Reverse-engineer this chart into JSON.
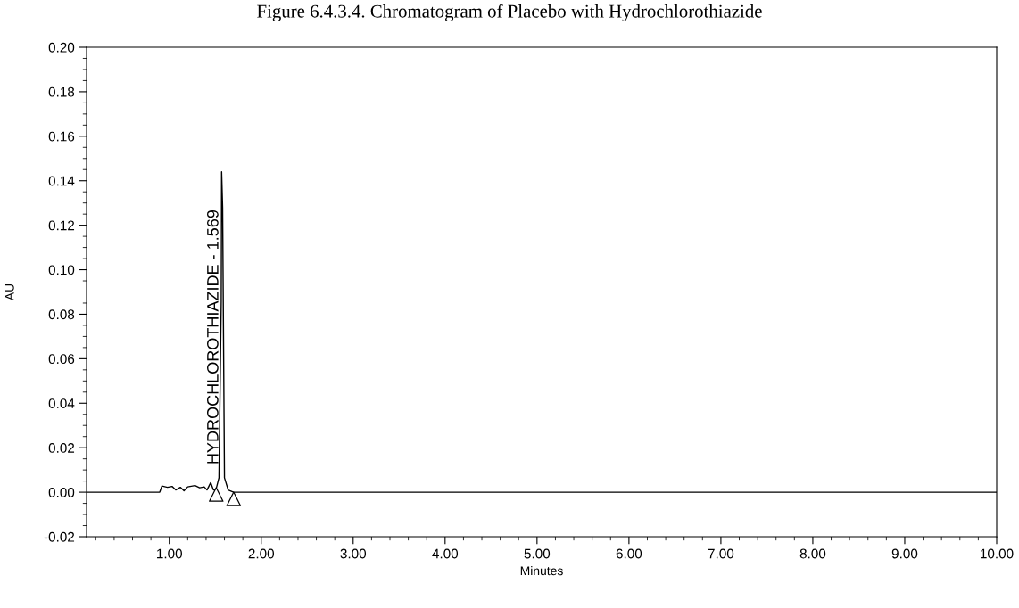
{
  "chart_data": {
    "type": "line",
    "title": "Figure 6.4.3.4. Chromatogram of Placebo with Hydrochlorothiazide",
    "xlabel": "Minutes",
    "ylabel": "AU",
    "annotations": [
      {
        "text": "HYDROCHLOROTHIAZIDE - 1.569",
        "x": 1.569,
        "y": 0.127
      }
    ],
    "series": [
      {
        "color": "#000000",
        "x": [
          0.1,
          0.5,
          0.896,
          0.92,
          0.98,
          1.03,
          1.07,
          1.12,
          1.16,
          1.2,
          1.28,
          1.33,
          1.38,
          1.41,
          1.45,
          1.48,
          1.51,
          1.54,
          1.565,
          1.569,
          1.58,
          1.6,
          1.64,
          1.7,
          3.0,
          5.0,
          7.0,
          10.0
        ],
        "values": [
          0,
          0,
          0,
          0.0028,
          0.0022,
          0.0026,
          0.001,
          0.0022,
          0.0006,
          0.0024,
          0.003,
          0.002,
          0.0024,
          0.001,
          0.0043,
          0.001,
          0.0016,
          0.0065,
          0.086,
          0.144,
          0.128,
          0.0065,
          0.001,
          0,
          0,
          0,
          0,
          0
        ]
      },
      {
        "type": "scatter",
        "color": "#000000",
        "marker": "triangle",
        "x": [
          1.51,
          1.7
        ],
        "values": [
          -0.001,
          -0.003
        ]
      }
    ],
    "xlim": [
      0.1,
      10.0
    ],
    "ylim": [
      -0.02,
      0.2
    ],
    "xticks": [
      {
        "value": 1,
        "label": "1.00"
      },
      {
        "value": 2,
        "label": "2.00"
      },
      {
        "value": 3,
        "label": "3.00"
      },
      {
        "value": 4,
        "label": "4.00"
      },
      {
        "value": 5,
        "label": "5.00"
      },
      {
        "value": 6,
        "label": "6.00"
      },
      {
        "value": 7,
        "label": "7.00"
      },
      {
        "value": 8,
        "label": "8.00"
      },
      {
        "value": 9,
        "label": "9.00"
      },
      {
        "value": 10,
        "label": "10.00"
      }
    ],
    "yticks": [
      {
        "value": -0.02,
        "label": "-0.02"
      },
      {
        "value": 0,
        "label": "0.00"
      },
      {
        "value": 0.02,
        "label": "0.02"
      },
      {
        "value": 0.04,
        "label": "0.04"
      },
      {
        "value": 0.06,
        "label": "0.06"
      },
      {
        "value": 0.08,
        "label": "0.08"
      },
      {
        "value": 0.1,
        "label": "0.10"
      },
      {
        "value": 0.12,
        "label": "0.12"
      },
      {
        "value": 0.14,
        "label": "0.14"
      },
      {
        "value": 0.16,
        "label": "0.16"
      },
      {
        "value": 0.18,
        "label": "0.18"
      },
      {
        "value": 0.2,
        "label": "0.20"
      }
    ],
    "grid": false,
    "legend": false
  }
}
